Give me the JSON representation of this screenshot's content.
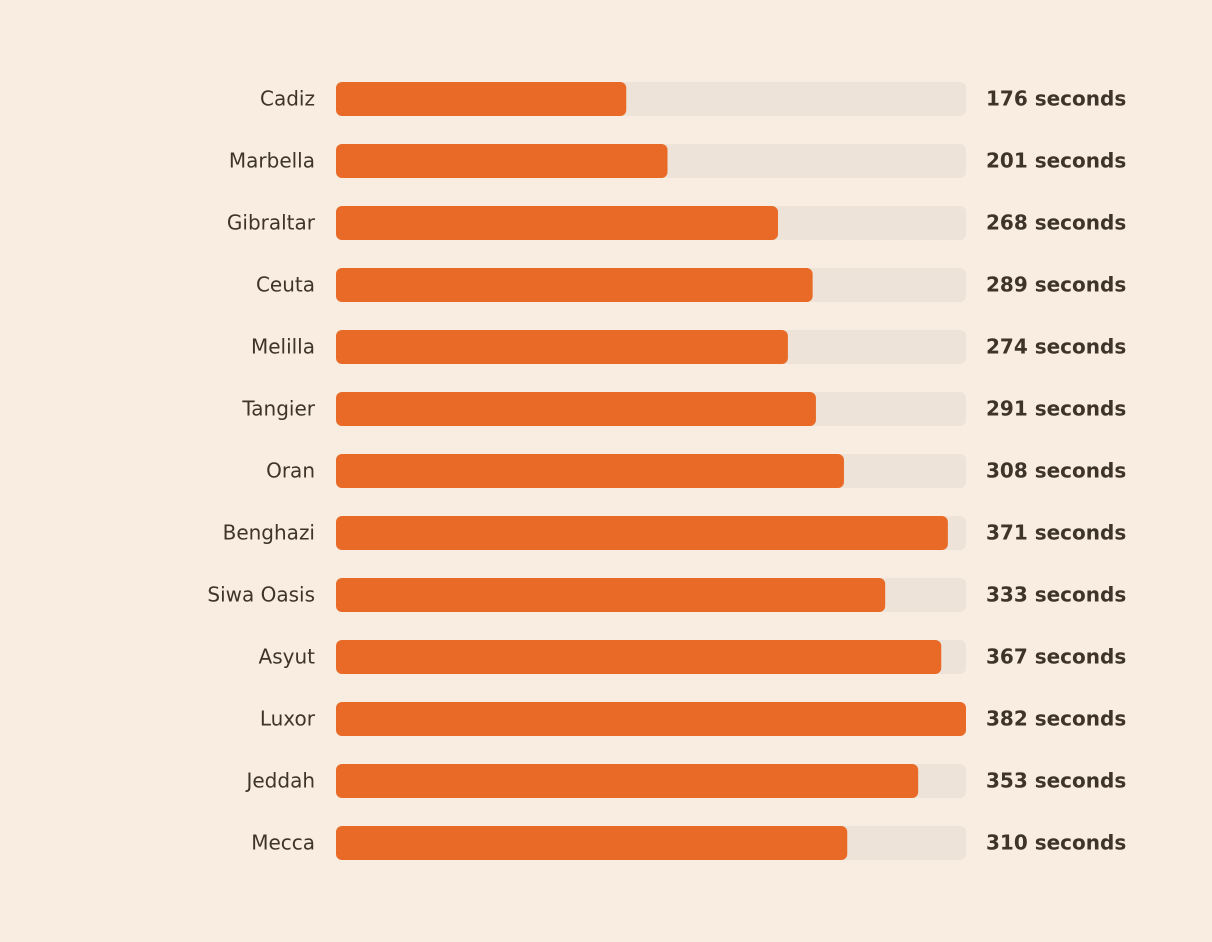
{
  "chart_data": {
    "type": "bar",
    "orientation": "horizontal",
    "categories": [
      "Cadiz",
      "Marbella",
      "Gibraltar",
      "Ceuta",
      "Melilla",
      "Tangier",
      "Oran",
      "Benghazi",
      "Siwa Oasis",
      "Asyut",
      "Luxor",
      "Jeddah",
      "Mecca"
    ],
    "values": [
      176,
      201,
      268,
      289,
      274,
      291,
      308,
      371,
      333,
      367,
      382,
      353,
      310
    ],
    "value_labels": [
      "176 seconds",
      "201 seconds",
      "268 seconds",
      "289 seconds",
      "274 seconds",
      "291 seconds",
      "308 seconds",
      "371 seconds",
      "333 seconds",
      "367 seconds",
      "382 seconds",
      "353 seconds",
      "310 seconds"
    ],
    "color": "#e86a26",
    "track_color": "#ede3d8",
    "xlim": [
      0,
      382
    ]
  }
}
